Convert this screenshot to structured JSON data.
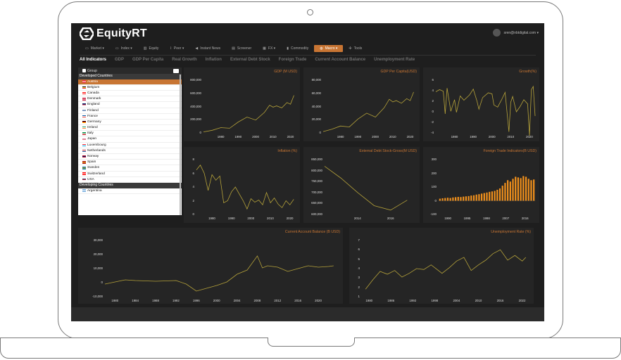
{
  "app": {
    "name": "EquityRT",
    "user_email": "sren@nbtdigital.com ▾"
  },
  "menu": [
    {
      "label": "Market ▾",
      "icon": "monitor-icon",
      "active": false
    },
    {
      "label": "Index ▾",
      "icon": "monitor-icon",
      "active": false
    },
    {
      "label": "Equity",
      "icon": "bar-chart-icon",
      "active": false
    },
    {
      "label": "Peer ▾",
      "icon": "chart-icon",
      "active": false
    },
    {
      "label": "Instant News",
      "icon": "megaphone-icon",
      "active": false
    },
    {
      "label": "Screener",
      "icon": "screener-icon",
      "active": false
    },
    {
      "label": "FX ▾",
      "icon": "grid-icon",
      "active": false
    },
    {
      "label": "Commodity",
      "icon": "flask-icon",
      "active": false
    },
    {
      "label": "Macro ▾",
      "icon": "globe-icon",
      "active": true
    },
    {
      "label": "Tools",
      "icon": "wrench-icon",
      "active": false
    }
  ],
  "subtabs": [
    {
      "label": "All Indicators",
      "active": true
    },
    {
      "label": "GDP",
      "active": false
    },
    {
      "label": "GDP Per Capita",
      "active": false
    },
    {
      "label": "Real Growth",
      "active": false
    },
    {
      "label": "Inflation",
      "active": false
    },
    {
      "label": "External Debt Stock",
      "active": false
    },
    {
      "label": "Foreign Trade",
      "active": false
    },
    {
      "label": "Current Account Balance",
      "active": false
    },
    {
      "label": "Unemployment Rate",
      "active": false
    }
  ],
  "sidebar": {
    "header": "Group",
    "groups": [
      {
        "name": "Developed Countries",
        "items": [
          {
            "label": "Austria",
            "selected": true,
            "flag": [
              "#ed2939",
              "#ffffff",
              "#ed2939"
            ]
          },
          {
            "label": "Belgium",
            "flag": [
              "#000000",
              "#fae042",
              "#ed2939"
            ]
          },
          {
            "label": "Canada",
            "flag": [
              "#ff0000",
              "#ffffff",
              "#ff0000"
            ]
          },
          {
            "label": "Denmark",
            "flag": [
              "#c60c30",
              "#ffffff",
              "#c60c30"
            ]
          },
          {
            "label": "England",
            "flag": [
              "#012169",
              "#c8102e",
              "#ffffff"
            ]
          },
          {
            "label": "Finland",
            "flag": [
              "#ffffff",
              "#003580",
              "#ffffff"
            ]
          },
          {
            "label": "France",
            "flag": [
              "#0055a4",
              "#ffffff",
              "#ef4135"
            ]
          },
          {
            "label": "Germany",
            "flag": [
              "#000000",
              "#dd0000",
              "#ffce00"
            ]
          },
          {
            "label": "Ireland",
            "flag": [
              "#169b62",
              "#ffffff",
              "#ff883e"
            ]
          },
          {
            "label": "Italy",
            "flag": [
              "#009246",
              "#ffffff",
              "#ce2b37"
            ]
          },
          {
            "label": "Japan",
            "flag": [
              "#ffffff",
              "#bc002d",
              "#ffffff"
            ]
          },
          {
            "label": "Luxembourg",
            "flag": [
              "#ed2939",
              "#ffffff",
              "#00a1de"
            ]
          },
          {
            "label": "Netherlands",
            "flag": [
              "#ae1c28",
              "#ffffff",
              "#21468b"
            ]
          },
          {
            "label": "Norway",
            "flag": [
              "#ba0c2f",
              "#00205b",
              "#ba0c2f"
            ]
          },
          {
            "label": "Spain",
            "flag": [
              "#aa151b",
              "#f1bf00",
              "#aa151b"
            ]
          },
          {
            "label": "Sweden",
            "flag": [
              "#006aa7",
              "#fecc00",
              "#006aa7"
            ]
          },
          {
            "label": "Switzerland",
            "flag": [
              "#ff0000",
              "#ffffff",
              "#ff0000"
            ]
          },
          {
            "label": "USA",
            "flag": [
              "#3c3b6e",
              "#b22234",
              "#ffffff"
            ]
          }
        ]
      },
      {
        "name": "Developing Countries",
        "items": [
          {
            "label": "Argentina",
            "flag": [
              "#74acdf",
              "#ffffff",
              "#74acdf"
            ]
          }
        ]
      }
    ]
  },
  "colors": {
    "accent": "#c87533",
    "line": "#b5a23a",
    "bar": "#f0901c"
  },
  "chart_data": [
    {
      "id": "gdp",
      "type": "line",
      "title": "GDP (M USD)",
      "xlim": [
        1970,
        2023
      ],
      "ylim": [
        0,
        800000
      ],
      "yticks": [
        0,
        200000,
        400000,
        600000,
        800000
      ],
      "ytick_labels": [
        "0",
        "200,000",
        "400,000",
        "600,000",
        "800,000"
      ],
      "xticks": [
        1980,
        1990,
        2000,
        2010,
        2020
      ],
      "x": [
        1970,
        1975,
        1980,
        1985,
        1990,
        1995,
        2000,
        2005,
        2008,
        2010,
        2012,
        2015,
        2018,
        2020,
        2022
      ],
      "y": [
        15000,
        40000,
        80000,
        70000,
        165000,
        240000,
        195000,
        310000,
        420000,
        390000,
        410000,
        380000,
        460000,
        435000,
        570000
      ]
    },
    {
      "id": "gdp-per-capita",
      "type": "line",
      "title": "GDP Per Capita(USD)",
      "xlim": [
        1970,
        2023
      ],
      "ylim": [
        0,
        80000
      ],
      "yticks": [
        0,
        20000,
        40000,
        60000,
        80000
      ],
      "ytick_labels": [
        "0",
        "20,000",
        "40,000",
        "60,000",
        "80,000"
      ],
      "xticks": [
        1980,
        1990,
        2000,
        2010,
        2020
      ],
      "x": [
        1970,
        1975,
        1980,
        1985,
        1990,
        1995,
        2000,
        2005,
        2008,
        2010,
        2012,
        2015,
        2018,
        2020,
        2022
      ],
      "y": [
        2000,
        5500,
        10500,
        9000,
        21000,
        30000,
        24000,
        38000,
        51000,
        47000,
        49000,
        45000,
        52000,
        49000,
        62000
      ]
    },
    {
      "id": "growth",
      "type": "line",
      "title": "Growth(%)",
      "xlim": [
        1970,
        2023
      ],
      "ylim": [
        -4,
        6
      ],
      "yticks": [
        -4,
        -2,
        0,
        2,
        4,
        6
      ],
      "ytick_labels": [
        "-4",
        "-2",
        "0",
        "2",
        "4",
        "6"
      ],
      "xticks": [
        1980,
        1990,
        2000,
        2010,
        2020
      ],
      "x": [
        1970,
        1972,
        1974,
        1975,
        1976,
        1978,
        1980,
        1981,
        1983,
        1985,
        1988,
        1990,
        1992,
        1993,
        1995,
        1998,
        2000,
        2001,
        2003,
        2005,
        2007,
        2009,
        2010,
        2011,
        2013,
        2015,
        2017,
        2019,
        2020,
        2021,
        2022,
        2023
      ],
      "y": [
        3.8,
        4.2,
        3.9,
        -0.4,
        4.5,
        0.1,
        2.3,
        -0.1,
        3.0,
        2.2,
        3.2,
        4.3,
        2.0,
        0.5,
        2.7,
        3.6,
        3.4,
        1.3,
        0.9,
        2.2,
        3.7,
        -3.8,
        1.8,
        2.9,
        0.0,
        1.0,
        2.3,
        1.5,
        -4.5,
        4.2,
        4.8,
        -0.8
      ]
    },
    {
      "id": "inflation",
      "type": "line",
      "title": "Inflation (%)",
      "xlim": [
        1972,
        2023
      ],
      "ylim": [
        0,
        8
      ],
      "yticks": [
        0,
        2,
        4,
        6,
        8
      ],
      "ytick_labels": [
        "0",
        "2",
        "4",
        "6",
        "8"
      ],
      "xticks": [
        1980,
        1990,
        2000,
        2010,
        2020
      ],
      "x": [
        1972,
        1974,
        1976,
        1978,
        1980,
        1982,
        1984,
        1986,
        1988,
        1990,
        1992,
        1994,
        1996,
        1998,
        2000,
        2002,
        2004,
        2006,
        2008,
        2010,
        2012,
        2014,
        2016,
        2018,
        2020,
        2022
      ],
      "y": [
        6.5,
        7.2,
        6.0,
        3.5,
        5.8,
        5.0,
        5.6,
        1.7,
        2.0,
        3.3,
        4.0,
        3.0,
        2.0,
        0.8,
        2.3,
        1.8,
        2.1,
        1.4,
        3.2,
        1.7,
        2.4,
        1.5,
        1.0,
        2.0,
        1.4,
        2.2
      ]
    },
    {
      "id": "external-debt",
      "type": "line",
      "title": "External Debt Stock-Gross(M USD)",
      "xlim": [
        2012,
        2017.5
      ],
      "ylim": [
        600000,
        850000
      ],
      "yticks": [
        600000,
        650000,
        700000,
        750000,
        800000,
        850000
      ],
      "ytick_labels": [
        "600,000",
        "650,000",
        "700,000",
        "750,000",
        "800,000",
        "850,000"
      ],
      "xticks": [
        2014,
        2016
      ],
      "x": [
        2012,
        2013,
        2014,
        2015,
        2016,
        2017
      ],
      "y": [
        820000,
        765000,
        700000,
        640000,
        620000,
        665000
      ]
    },
    {
      "id": "foreign-trade",
      "type": "bar",
      "title": "Foreign Trade Indicators(B USD)",
      "xlim": [
        1980,
        2017
      ],
      "ylim": [
        -100,
        300
      ],
      "yticks": [
        -100,
        0,
        100,
        200,
        300
      ],
      "ytick_labels": [
        "-100",
        "0",
        "100",
        "200",
        "300"
      ],
      "xticks": [
        1990,
        1995,
        1998,
        2007,
        2016
      ],
      "xtick_labels": [
        "1990",
        "1995",
        "1998",
        "2007",
        "2016"
      ],
      "values": [
        15,
        18,
        20,
        22,
        20,
        24,
        26,
        28,
        27,
        30,
        32,
        34,
        38,
        40,
        45,
        48,
        52,
        56,
        60,
        65,
        68,
        72,
        80,
        90,
        110,
        130,
        150,
        140,
        160,
        175,
        170,
        165,
        180,
        175,
        160,
        150,
        155
      ]
    },
    {
      "id": "current-account",
      "type": "line",
      "title": "Current Account Balance (B USD)",
      "xlim": [
        1978,
        2024
      ],
      "ylim": [
        -10000,
        30000
      ],
      "yticks": [
        -10000,
        0,
        10000,
        20000,
        30000
      ],
      "ytick_labels": [
        "-10,000",
        "0",
        "10,000",
        "20,000",
        "30,000"
      ],
      "xticks": [
        1980,
        1984,
        1988,
        1992,
        1996,
        2000,
        2004,
        2008,
        2012,
        2016,
        2020
      ],
      "x": [
        1978,
        1980,
        1982,
        1984,
        1988,
        1992,
        1994,
        1996,
        1998,
        2000,
        2002,
        2004,
        2006,
        2008,
        2009,
        2010,
        2012,
        2014,
        2016,
        2018,
        2020,
        2022,
        2023
      ],
      "y": [
        -1000,
        500,
        2000,
        1500,
        1000,
        1500,
        -1000,
        -6000,
        -4000,
        -2000,
        500,
        6000,
        9000,
        19000,
        10500,
        12000,
        11000,
        8000,
        10000,
        12000,
        11000,
        11500,
        12000
      ]
    },
    {
      "id": "unemployment",
      "type": "line",
      "title": "Unemployment Rate (%)",
      "xlim": [
        1978,
        2024
      ],
      "ylim": [
        1,
        7
      ],
      "yticks": [
        1,
        2,
        3,
        4,
        5,
        6,
        7
      ],
      "ytick_labels": [
        "1",
        "2",
        "3",
        "4",
        "5",
        "6",
        "7"
      ],
      "xticks": [
        1980,
        1986,
        1992,
        1998,
        2004,
        2010,
        2016,
        2022
      ],
      "x": [
        1979,
        1981,
        1983,
        1985,
        1987,
        1989,
        1991,
        1993,
        1995,
        1997,
        2000,
        2002,
        2004,
        2006,
        2008,
        2010,
        2012,
        2014,
        2016,
        2018,
        2020,
        2022,
        2023
      ],
      "y": [
        1.8,
        2.8,
        3.7,
        3.4,
        3.8,
        3.1,
        3.5,
        4.0,
        3.9,
        4.4,
        3.5,
        4.1,
        4.8,
        5.2,
        3.8,
        4.4,
        4.9,
        5.6,
        6.0,
        4.9,
        5.4,
        4.8,
        5.2
      ]
    }
  ]
}
